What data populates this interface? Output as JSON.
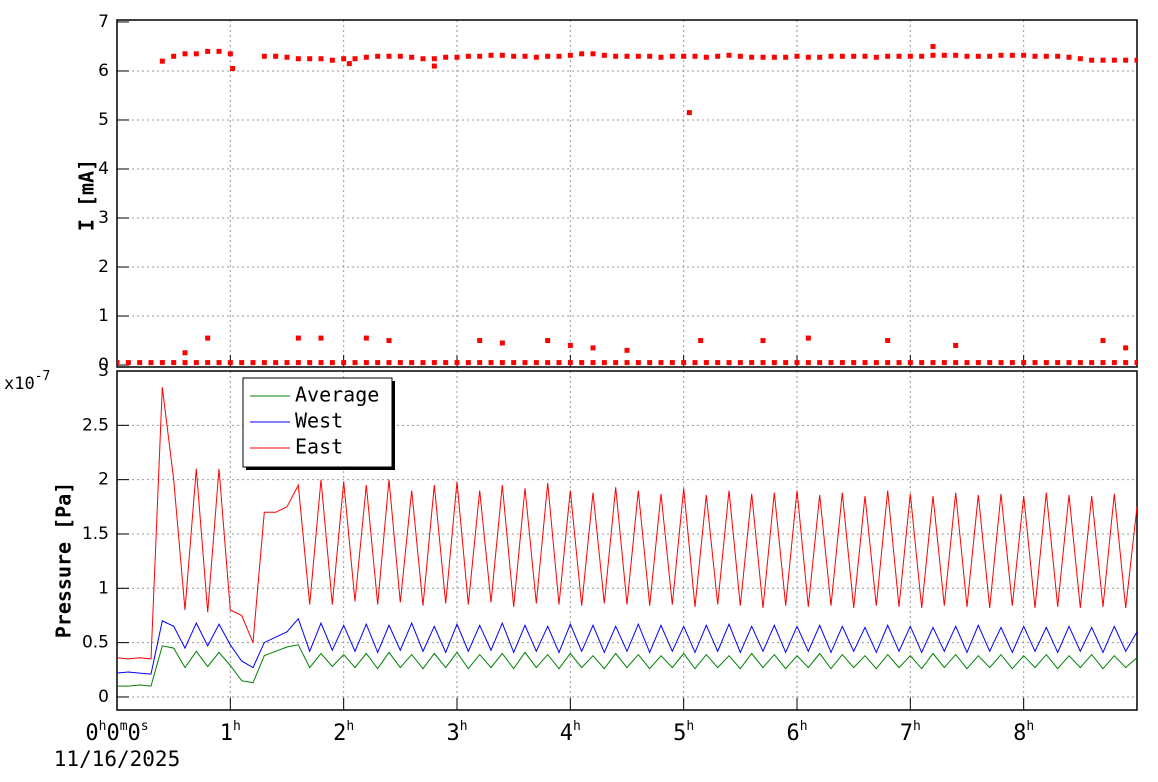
{
  "chart_data": [
    {
      "type": "scatter",
      "ylabel": "I [mA]",
      "xlim": [
        0,
        9
      ],
      "ylim": [
        -0.04,
        7.04
      ],
      "xticks": [
        0,
        1,
        2,
        3,
        4,
        5,
        6,
        7,
        8
      ],
      "yticks": [
        0,
        1,
        2,
        3,
        4,
        5,
        6,
        7
      ],
      "grid": true,
      "series": [
        {
          "color": "#ff0000",
          "x": [
            0.4,
            0.5,
            0.6,
            0.7,
            0.8,
            0.9,
            1.0,
            1.3,
            1.4,
            1.5,
            1.6,
            1.7,
            1.8,
            1.9,
            2.0,
            2.1,
            2.2,
            2.3,
            2.4,
            2.5,
            2.6,
            2.7,
            2.8,
            2.9,
            3.0,
            3.1,
            3.2,
            3.3,
            3.4,
            3.5,
            3.6,
            3.7,
            3.8,
            3.9,
            4.0,
            4.1,
            4.2,
            4.3,
            4.4,
            4.5,
            4.6,
            4.7,
            4.8,
            4.9,
            5.0,
            5.1,
            5.2,
            5.3,
            5.4,
            5.5,
            5.6,
            5.7,
            5.8,
            5.9,
            6.0,
            6.1,
            6.2,
            6.3,
            6.4,
            6.5,
            6.6,
            6.7,
            6.8,
            6.9,
            7.0,
            7.1,
            7.2,
            7.3,
            7.4,
            7.5,
            7.6,
            7.7,
            7.8,
            7.9,
            8.0,
            8.1,
            8.2,
            8.3,
            8.4,
            8.5,
            8.6,
            8.7,
            8.8,
            8.9,
            9.0
          ],
          "values": [
            6.2,
            6.3,
            6.35,
            6.35,
            6.4,
            6.4,
            6.35,
            6.3,
            6.3,
            6.28,
            6.25,
            6.25,
            6.25,
            6.22,
            6.25,
            6.25,
            6.28,
            6.3,
            6.3,
            6.3,
            6.28,
            6.25,
            6.25,
            6.28,
            6.28,
            6.3,
            6.3,
            6.32,
            6.32,
            6.3,
            6.3,
            6.28,
            6.3,
            6.3,
            6.32,
            6.35,
            6.35,
            6.32,
            6.3,
            6.3,
            6.3,
            6.3,
            6.28,
            6.3,
            6.3,
            6.3,
            6.28,
            6.3,
            6.32,
            6.3,
            6.28,
            6.28,
            6.28,
            6.28,
            6.3,
            6.28,
            6.28,
            6.3,
            6.3,
            6.3,
            6.3,
            6.28,
            6.3,
            6.3,
            6.3,
            6.3,
            6.32,
            6.32,
            6.32,
            6.3,
            6.3,
            6.3,
            6.32,
            6.32,
            6.32,
            6.3,
            6.3,
            6.3,
            6.28,
            6.25,
            6.22,
            6.22,
            6.22,
            6.22,
            6.22
          ]
        },
        {
          "color": "#ff0000",
          "x": [
            0,
            0.1,
            0.2,
            0.3,
            0.4,
            0.5,
            0.6,
            0.7,
            0.8,
            0.9,
            1.0,
            1.1,
            1.2,
            1.3,
            1.4,
            1.5,
            1.6,
            1.7,
            1.8,
            1.9,
            2.0,
            2.1,
            2.2,
            2.3,
            2.4,
            2.5,
            2.6,
            2.7,
            2.8,
            2.9,
            3.0,
            3.1,
            3.2,
            3.3,
            3.4,
            3.5,
            3.6,
            3.7,
            3.8,
            3.9,
            4.0,
            4.1,
            4.2,
            4.3,
            4.4,
            4.5,
            4.6,
            4.7,
            4.8,
            4.9,
            5.0,
            5.1,
            5.2,
            5.3,
            5.4,
            5.5,
            5.6,
            5.7,
            5.8,
            5.9,
            6.0,
            6.1,
            6.2,
            6.3,
            6.4,
            6.5,
            6.6,
            6.7,
            6.8,
            6.9,
            7.0,
            7.1,
            7.2,
            7.3,
            7.4,
            7.5,
            7.6,
            7.7,
            7.8,
            7.9,
            8.0,
            8.1,
            8.2,
            8.3,
            8.4,
            8.5,
            8.6,
            8.7,
            8.8,
            8.9,
            9.0
          ],
          "values": [
            0.05,
            0.05,
            0.05,
            0.05,
            0.05,
            0.05,
            0.05,
            0.05,
            0.05,
            0.05,
            0.05,
            0.05,
            0.05,
            0.05,
            0.05,
            0.05,
            0.05,
            0.05,
            0.05,
            0.05,
            0.05,
            0.05,
            0.05,
            0.05,
            0.05,
            0.05,
            0.05,
            0.05,
            0.05,
            0.05,
            0.05,
            0.05,
            0.05,
            0.05,
            0.05,
            0.05,
            0.05,
            0.05,
            0.05,
            0.05,
            0.05,
            0.05,
            0.05,
            0.05,
            0.05,
            0.05,
            0.05,
            0.05,
            0.05,
            0.05,
            0.05,
            0.05,
            0.05,
            0.05,
            0.05,
            0.05,
            0.05,
            0.05,
            0.05,
            0.05,
            0.05,
            0.05,
            0.05,
            0.05,
            0.05,
            0.05,
            0.05,
            0.05,
            0.05,
            0.05,
            0.05,
            0.05,
            0.05,
            0.05,
            0.05,
            0.05,
            0.05,
            0.05,
            0.05,
            0.05,
            0.05,
            0.05,
            0.05,
            0.05,
            0.05,
            0.05,
            0.05,
            0.05,
            0.05,
            0.05,
            0.05
          ]
        },
        {
          "color": "#ff0000",
          "x": [
            0.6,
            0.8,
            1.02,
            1.6,
            1.8,
            2.05,
            2.2,
            2.4,
            2.8,
            3.2,
            3.4,
            3.8,
            4.0,
            4.2,
            4.5,
            5.05,
            5.15,
            5.7,
            6.1,
            6.8,
            7.2,
            7.4,
            8.7,
            8.9
          ],
          "values": [
            0.25,
            0.55,
            6.05,
            0.55,
            0.55,
            6.15,
            0.55,
            0.5,
            6.1,
            0.5,
            0.45,
            0.5,
            0.4,
            0.35,
            0.3,
            5.15,
            0.5,
            0.5,
            0.55,
            0.5,
            6.5,
            0.4,
            0.5,
            0.35
          ]
        }
      ]
    },
    {
      "type": "line",
      "ylabel": "Pressure [Pa]",
      "y_multiplier_label": "x10-7",
      "x_date_label": "11/16/2025",
      "legend": "upper left",
      "grid": true,
      "xlim": [
        0,
        9
      ],
      "ylim": [
        -0.12,
        3.0
      ],
      "xticks": [
        {
          "value": 0,
          "label": "0h0m0s"
        },
        {
          "value": 1,
          "label": "1h"
        },
        {
          "value": 2,
          "label": "2h"
        },
        {
          "value": 3,
          "label": "3h"
        },
        {
          "value": 4,
          "label": "4h"
        },
        {
          "value": 5,
          "label": "5h"
        },
        {
          "value": 6,
          "label": "6h"
        },
        {
          "value": 7,
          "label": "7h"
        },
        {
          "value": 8,
          "label": "8h"
        }
      ],
      "yticks": [
        0,
        0.5,
        1,
        1.5,
        2,
        2.5,
        3
      ],
      "x": [
        0,
        0.1,
        0.2,
        0.3,
        0.4,
        0.5,
        0.6,
        0.7,
        0.8,
        0.9,
        1.0,
        1.1,
        1.2,
        1.3,
        1.4,
        1.5,
        1.6,
        1.7,
        1.8,
        1.9,
        2.0,
        2.1,
        2.2,
        2.3,
        2.4,
        2.5,
        2.6,
        2.7,
        2.8,
        2.9,
        3.0,
        3.1,
        3.2,
        3.3,
        3.4,
        3.5,
        3.6,
        3.7,
        3.8,
        3.9,
        4.0,
        4.1,
        4.2,
        4.3,
        4.4,
        4.5,
        4.6,
        4.7,
        4.8,
        4.9,
        5.0,
        5.1,
        5.2,
        5.3,
        5.4,
        5.5,
        5.6,
        5.7,
        5.8,
        5.9,
        6.0,
        6.1,
        6.2,
        6.3,
        6.4,
        6.5,
        6.6,
        6.7,
        6.8,
        6.9,
        7.0,
        7.1,
        7.2,
        7.3,
        7.4,
        7.5,
        7.6,
        7.7,
        7.8,
        7.9,
        8.0,
        8.1,
        8.2,
        8.3,
        8.4,
        8.5,
        8.6,
        8.7,
        8.8,
        8.9,
        9.0
      ],
      "series": [
        {
          "name": "Average",
          "color": "#008000",
          "values": [
            0.1,
            0.1,
            0.11,
            0.1,
            0.47,
            0.45,
            0.27,
            0.42,
            0.28,
            0.41,
            0.29,
            0.15,
            0.13,
            0.38,
            0.42,
            0.46,
            0.48,
            0.27,
            0.4,
            0.28,
            0.39,
            0.27,
            0.4,
            0.26,
            0.41,
            0.27,
            0.39,
            0.26,
            0.4,
            0.27,
            0.41,
            0.26,
            0.39,
            0.27,
            0.4,
            0.26,
            0.41,
            0.27,
            0.39,
            0.26,
            0.4,
            0.27,
            0.38,
            0.26,
            0.4,
            0.27,
            0.39,
            0.26,
            0.38,
            0.27,
            0.4,
            0.26,
            0.39,
            0.27,
            0.38,
            0.26,
            0.4,
            0.27,
            0.39,
            0.26,
            0.38,
            0.27,
            0.4,
            0.26,
            0.39,
            0.27,
            0.38,
            0.26,
            0.39,
            0.27,
            0.38,
            0.26,
            0.4,
            0.27,
            0.39,
            0.26,
            0.38,
            0.27,
            0.39,
            0.26,
            0.38,
            0.27,
            0.39,
            0.26,
            0.38,
            0.27,
            0.39,
            0.26,
            0.38,
            0.27,
            0.36
          ]
        },
        {
          "name": "West",
          "color": "#0000ff",
          "values": [
            0.22,
            0.23,
            0.22,
            0.21,
            0.7,
            0.65,
            0.45,
            0.68,
            0.47,
            0.67,
            0.48,
            0.33,
            0.27,
            0.5,
            0.55,
            0.6,
            0.72,
            0.42,
            0.68,
            0.43,
            0.66,
            0.42,
            0.67,
            0.41,
            0.66,
            0.43,
            0.68,
            0.42,
            0.65,
            0.41,
            0.67,
            0.42,
            0.66,
            0.43,
            0.68,
            0.41,
            0.66,
            0.42,
            0.65,
            0.41,
            0.67,
            0.42,
            0.66,
            0.41,
            0.65,
            0.42,
            0.67,
            0.41,
            0.66,
            0.42,
            0.65,
            0.41,
            0.66,
            0.42,
            0.67,
            0.41,
            0.65,
            0.42,
            0.66,
            0.41,
            0.65,
            0.42,
            0.66,
            0.41,
            0.65,
            0.42,
            0.64,
            0.41,
            0.66,
            0.42,
            0.65,
            0.41,
            0.64,
            0.42,
            0.65,
            0.41,
            0.66,
            0.42,
            0.64,
            0.41,
            0.65,
            0.42,
            0.64,
            0.41,
            0.65,
            0.42,
            0.64,
            0.41,
            0.65,
            0.42,
            0.6
          ]
        },
        {
          "name": "East",
          "color": "#ff0000",
          "values": [
            0.36,
            0.35,
            0.36,
            0.35,
            2.85,
            2.0,
            0.8,
            2.1,
            0.78,
            2.1,
            0.8,
            0.75,
            0.5,
            1.7,
            1.7,
            1.75,
            1.95,
            0.85,
            2.0,
            0.85,
            1.98,
            0.88,
            1.95,
            0.85,
            2.0,
            0.87,
            1.9,
            0.84,
            1.95,
            0.86,
            1.98,
            0.85,
            1.9,
            0.87,
            1.95,
            0.83,
            1.92,
            0.86,
            1.97,
            0.85,
            1.9,
            0.84,
            1.88,
            0.86,
            1.93,
            0.85,
            1.9,
            0.84,
            1.87,
            0.85,
            1.92,
            0.83,
            1.86,
            0.85,
            1.9,
            0.84,
            1.87,
            0.82,
            1.88,
            0.84,
            1.9,
            0.83,
            1.86,
            0.84,
            1.88,
            0.82,
            1.85,
            0.84,
            1.9,
            0.83,
            1.87,
            0.82,
            1.85,
            0.84,
            1.88,
            0.83,
            1.86,
            0.82,
            1.87,
            0.84,
            1.85,
            0.82,
            1.88,
            0.83,
            1.86,
            0.82,
            1.85,
            0.83,
            1.87,
            0.82,
            1.75
          ]
        }
      ]
    }
  ]
}
